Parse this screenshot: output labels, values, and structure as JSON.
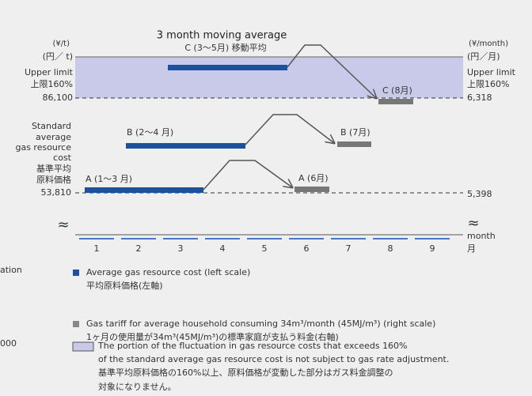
{
  "diagram": {
    "title": "3 month moving average",
    "left_axis": {
      "unit_en": "(¥/t)",
      "unit_ja": "(円／ t)",
      "upper_en": "Upper limit",
      "upper_ja": "上限160%",
      "upper_value": "86,100",
      "standard": [
        "Standard",
        "average",
        "gas resource",
        "cost",
        "基準平均",
        "原料価格"
      ],
      "standard_value": "53,810"
    },
    "right_axis": {
      "unit_en": "(¥/month)",
      "unit_ja": "(円／月)",
      "upper_en": "Upper limit",
      "upper_ja": "上限160%",
      "upper_value": "6,318",
      "standard_value": "5,398"
    },
    "labels": {
      "c_avg": "C (3〜5月) 移動平均",
      "b_avg": "B (2〜4 月)",
      "a_avg": "A (1〜3 月)",
      "c_tariff": "C (8月)",
      "b_tariff": "B (7月)",
      "a_tariff": "A (6月)"
    },
    "break": "≈",
    "months": [
      "1",
      "2",
      "3",
      "4",
      "5",
      "6",
      "7",
      "8",
      "9"
    ],
    "month_en": "month",
    "month_ja": "月",
    "cropped": [
      "ation",
      "000"
    ],
    "legend": [
      {
        "en": "Average gas resource cost (left scale)",
        "ja": "平均原料価格(左軸)"
      },
      {
        "en": "Gas tariff for average household consuming 34m³/month (45MJ/m³) (right scale)",
        "ja": "1ヶ月の使用量が34m³(45MJ/m³)の標準家庭が支払う料金(右軸)"
      },
      {
        "en": [
          "The portion of the fluctuation in gas resource costs that exceeds 160%",
          "of the standard average gas resource cost is not subject to gas rate adjustment."
        ],
        "ja": [
          "基準平均原料価格の160%以上、原料価格が変動した部分はガス料金調整の",
          "対象になりません。"
        ]
      }
    ]
  }
}
